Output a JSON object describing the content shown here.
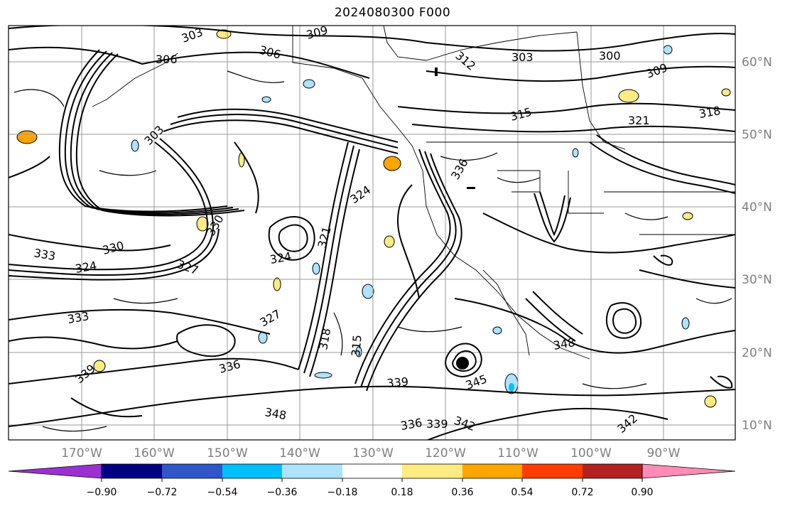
{
  "title": "2024080300 F000",
  "map": {
    "lon_labels": [
      "170°W",
      "160°W",
      "150°W",
      "140°W",
      "130°W",
      "120°W",
      "110°W",
      "100°W",
      "90°W"
    ],
    "lat_labels": [
      "60°N",
      "50°N",
      "40°N",
      "30°N",
      "20°N",
      "10°N"
    ],
    "contour_labels": [
      "303",
      "306",
      "309",
      "306",
      "303",
      "300",
      "312",
      "309",
      "315",
      "318",
      "321",
      "303",
      "324",
      "330",
      "336",
      "333",
      "327",
      "321",
      "324",
      "330",
      "324",
      "327",
      "336",
      "318",
      "315",
      "339",
      "345",
      "348",
      "342",
      "333",
      "336",
      "339",
      "348",
      "339",
      "342"
    ],
    "grid_color": "#9a9a9a",
    "contour_color": "#000000"
  },
  "colorbar": {
    "tick_labels": [
      "−0.90",
      "−0.72",
      "−0.54",
      "−0.36",
      "−0.18",
      "0.18",
      "0.36",
      "0.54",
      "0.72",
      "0.90"
    ],
    "colors": [
      "#9b30d0",
      "#000080",
      "#3156c8",
      "#00bfff",
      "#aee2ff",
      "#ffffff",
      "#ffeb84",
      "#ffa500",
      "#ff3c00",
      "#b22222",
      "#ff8cb4"
    ]
  }
}
